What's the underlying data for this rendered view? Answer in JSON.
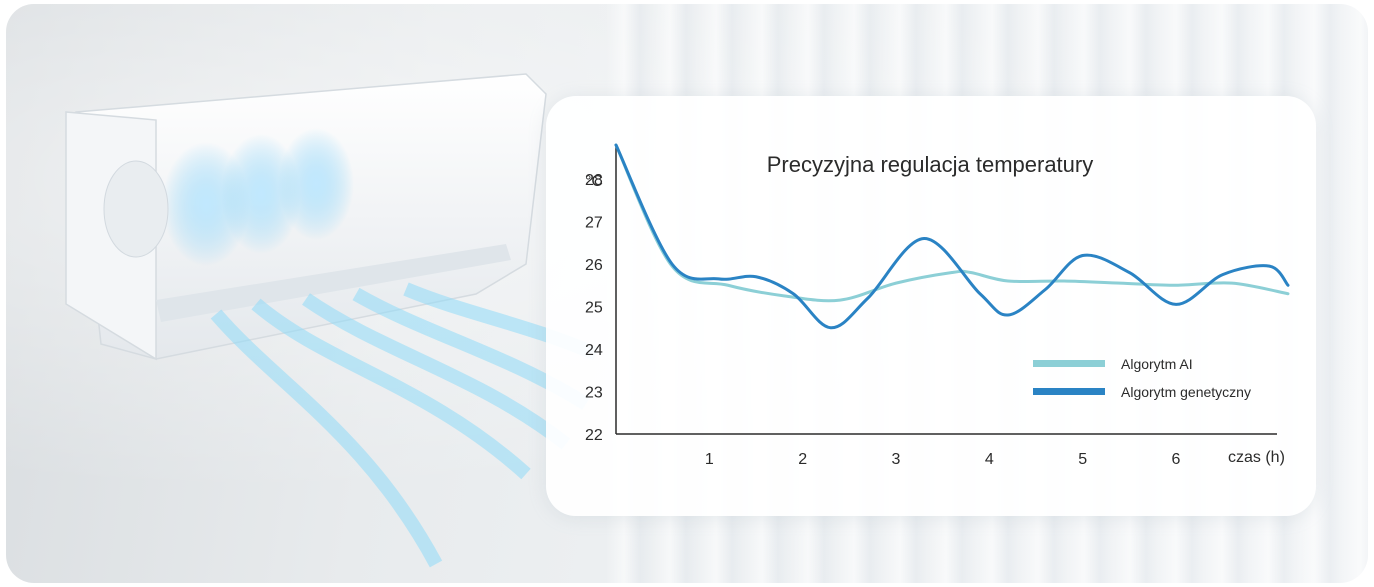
{
  "chart_data": {
    "type": "line",
    "title": "Precyzyjna regulacja temperatury",
    "ylabel": "°C",
    "xlabel": "czas (h)",
    "ylim": [
      22,
      28
    ],
    "xlim": [
      0,
      7.2
    ],
    "yticks": [
      22,
      23,
      24,
      25,
      26,
      27,
      28
    ],
    "xticks": [
      1,
      2,
      3,
      4,
      5,
      6
    ],
    "grid": false,
    "legend_position": "right",
    "series": [
      {
        "name": "Algorytm AI",
        "color": "#8ccfd6",
        "x": [
          0,
          0.6,
          1.2,
          1.8,
          2.4,
          3.0,
          3.6,
          3.8,
          4.2,
          4.8,
          5.4,
          6.0,
          6.6,
          7.2
        ],
        "y": [
          28.8,
          25.95,
          25.5,
          25.25,
          25.15,
          25.55,
          25.8,
          25.8,
          25.6,
          25.6,
          25.55,
          25.5,
          25.55,
          25.3
        ]
      },
      {
        "name": "Algorytm genetyczny",
        "color": "#2a83c4",
        "x": [
          0,
          0.6,
          1.1,
          1.5,
          1.9,
          2.3,
          2.7,
          3.3,
          3.9,
          4.2,
          4.6,
          5.0,
          5.5,
          6.0,
          6.5,
          7.0,
          7.2
        ],
        "y": [
          28.8,
          26.0,
          25.65,
          25.7,
          25.3,
          24.5,
          25.2,
          26.6,
          25.3,
          24.8,
          25.4,
          26.2,
          25.8,
          25.05,
          25.75,
          25.95,
          25.5
        ]
      }
    ]
  }
}
